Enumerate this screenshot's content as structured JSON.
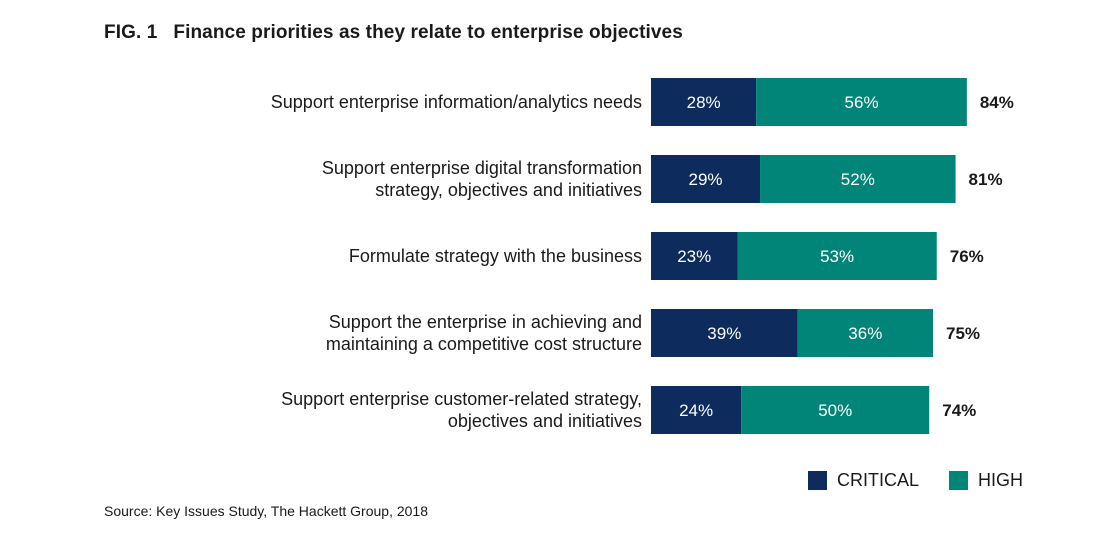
{
  "figure": {
    "number": "FIG. 1",
    "title": "Finance priorities as they relate to enterprise objectives"
  },
  "colors": {
    "critical": "#0d2b5c",
    "high": "#008578"
  },
  "chart_data": {
    "type": "bar",
    "orientation": "horizontal",
    "stacked": true,
    "title": "Finance priorities as they relate to enterprise objectives",
    "categories": [
      [
        "Support enterprise information/analytics needs"
      ],
      [
        "Support enterprise digital transformation",
        "strategy, objectives and initiatives"
      ],
      [
        "Formulate strategy with the business"
      ],
      [
        "Support the enterprise in achieving and",
        "maintaining a competitive cost structure"
      ],
      [
        "Support enterprise customer-related strategy,",
        "objectives and initiatives"
      ]
    ],
    "series": [
      {
        "name": "CRITICAL",
        "values": [
          28,
          29,
          23,
          39,
          24
        ],
        "labels": [
          "28%",
          "29%",
          "23%",
          "39%",
          "24%"
        ]
      },
      {
        "name": "HIGH",
        "values": [
          56,
          52,
          53,
          36,
          50
        ],
        "labels": [
          "56%",
          "52%",
          "53%",
          "36%",
          "50%"
        ]
      }
    ],
    "totals": [
      84,
      81,
      76,
      75,
      74
    ],
    "total_labels": [
      "84%",
      "81%",
      "76%",
      "75%",
      "74%"
    ],
    "xlim": [
      0,
      100
    ],
    "grid": false,
    "legend_position": "bottom-right"
  },
  "legend": {
    "critical_label": "CRITICAL",
    "high_label": "HIGH"
  },
  "source": "Source: Key Issues Study, The Hackett Group, 2018"
}
